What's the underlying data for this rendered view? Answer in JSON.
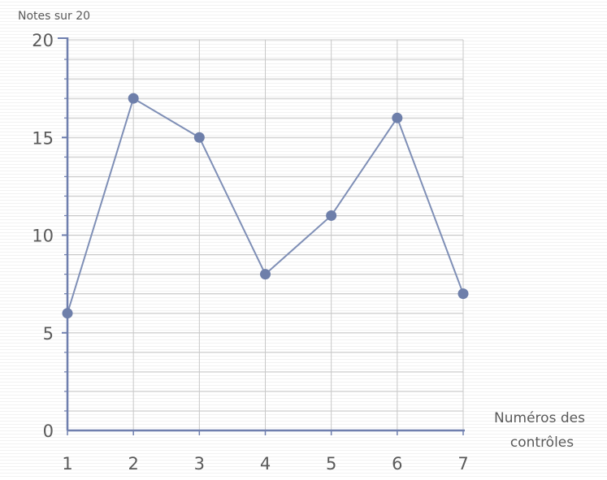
{
  "chart_data": {
    "type": "line",
    "title": "",
    "ylabel": "Notes sur 20",
    "xlabel": "Numéros des contrôles",
    "xlabel_lines": [
      "Numéros des",
      "contrôles"
    ],
    "x": [
      1,
      2,
      3,
      4,
      5,
      6,
      7
    ],
    "y_ticks": [
      0,
      5,
      10,
      15,
      20
    ],
    "ylim": [
      0,
      20
    ],
    "xlim": [
      1,
      7
    ],
    "grid": true,
    "series": [
      {
        "values": [
          6,
          17,
          15,
          8,
          11,
          16,
          7
        ]
      }
    ],
    "colors": {
      "line": "#7f8fb6",
      "marker": "#6e7faa",
      "axis": "#6f7fae",
      "grid": "#c8c8c8",
      "text": "#5a5a5a"
    }
  }
}
